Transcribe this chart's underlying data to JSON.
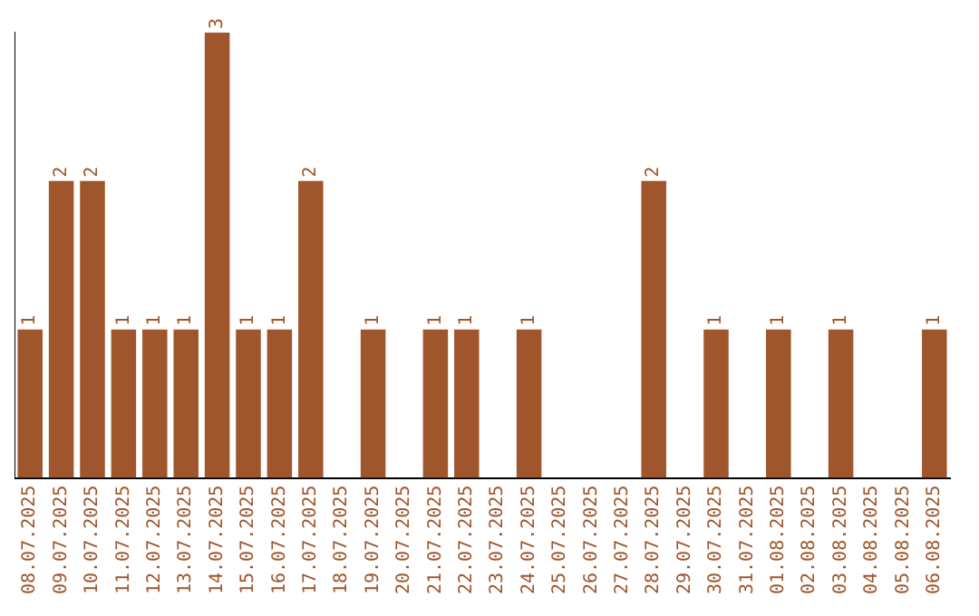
{
  "chart_data": {
    "type": "bar",
    "categories": [
      "08.07.2025",
      "09.07.2025",
      "10.07.2025",
      "11.07.2025",
      "12.07.2025",
      "13.07.2025",
      "14.07.2025",
      "15.07.2025",
      "16.07.2025",
      "17.07.2025",
      "18.07.2025",
      "19.07.2025",
      "20.07.2025",
      "21.07.2025",
      "22.07.2025",
      "23.07.2025",
      "24.07.2025",
      "25.07.2025",
      "26.07.2025",
      "27.07.2025",
      "28.07.2025",
      "29.07.2025",
      "30.07.2025",
      "31.07.2025",
      "01.08.2025",
      "02.08.2025",
      "03.08.2025",
      "04.08.2025",
      "05.08.2025",
      "06.08.2025"
    ],
    "values": [
      1,
      2,
      2,
      1,
      1,
      1,
      3,
      1,
      1,
      2,
      0,
      1,
      0,
      1,
      1,
      0,
      1,
      0,
      0,
      0,
      2,
      0,
      1,
      0,
      1,
      0,
      1,
      0,
      0,
      1
    ],
    "value_labels": [
      "1",
      "2",
      "2",
      "1",
      "1",
      "1",
      "3",
      "1",
      "1",
      "2",
      null,
      "1",
      null,
      "1",
      "1",
      null,
      "1",
      null,
      null,
      null,
      "2",
      null,
      "1",
      null,
      "1",
      null,
      "1",
      null,
      null,
      "1"
    ],
    "color": "#a0562c",
    "grid": false,
    "tick_labels": "x",
    "legend": false
  }
}
